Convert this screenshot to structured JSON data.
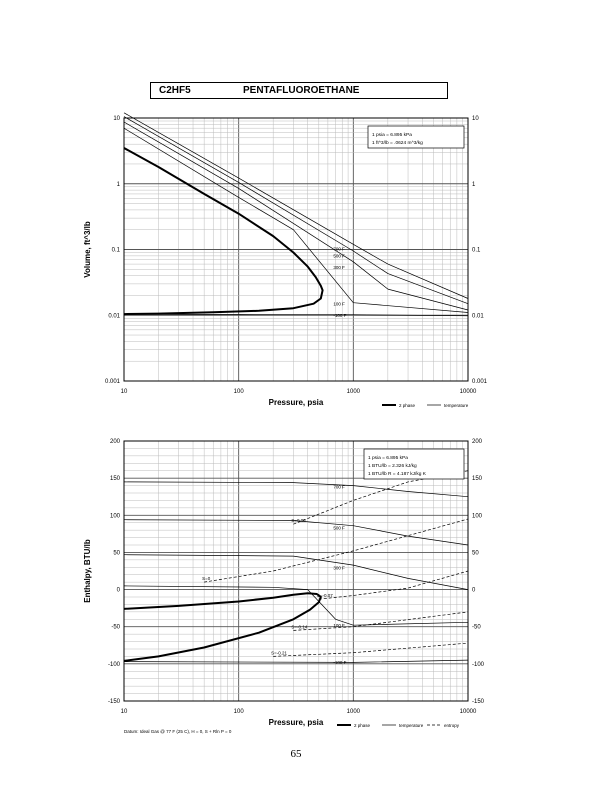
{
  "page": {
    "formula": "C2HF5",
    "name": "PENTAFLUOROETHANE",
    "page_number": "65",
    "footnote": "Datum: Ideal Gas @ 77 F (25 C), H = 0, S + Rln P = 0"
  },
  "chart_data": [
    {
      "type": "line",
      "xscale": "log",
      "yscale": "log",
      "xlim": [
        10,
        10000
      ],
      "ylim": [
        0.001,
        10
      ],
      "xlabel": "Pressure, psia",
      "ylabel": "Volume, ft^3/lb",
      "x_ticks": [
        "10",
        "100",
        "1000",
        "10000"
      ],
      "y_ticks": [
        "0.001",
        "0.01",
        "0.1",
        "1",
        "10"
      ],
      "conversions": [
        "1 psia = 6.895 kPa",
        "1 ft^3/lb = .0624 m^3/kg"
      ],
      "legend": [
        "2 phase",
        "temperature"
      ],
      "series": [
        {
          "role": "2 phase",
          "x": [
            10,
            20,
            50,
            100,
            200,
            300,
            400,
            470,
            520,
            540,
            520,
            450,
            300,
            150,
            60,
            20,
            10
          ],
          "y": [
            3.5,
            1.8,
            0.7,
            0.35,
            0.16,
            0.09,
            0.055,
            0.038,
            0.028,
            0.024,
            0.018,
            0.015,
            0.0128,
            0.0117,
            0.0111,
            0.0106,
            0.0104
          ]
        },
        {
          "name": "-100 F",
          "x": [
            10,
            100,
            1000,
            10000
          ],
          "y": [
            0.0103,
            0.0103,
            0.0102,
            0.0098
          ]
        },
        {
          "name": "100 F",
          "x": [
            10,
            100,
            300,
            1000,
            10000
          ],
          "y": [
            7.0,
            0.62,
            0.2,
            0.0155,
            0.011
          ]
        },
        {
          "name": "300 F",
          "x": [
            10,
            100,
            1000,
            2000,
            10000
          ],
          "y": [
            8.7,
            0.85,
            0.065,
            0.025,
            0.012
          ]
        },
        {
          "name": "500 F",
          "x": [
            10,
            100,
            1000,
            2000,
            10000
          ],
          "y": [
            10.5,
            1.05,
            0.095,
            0.043,
            0.015
          ]
        },
        {
          "name": "700 F",
          "x": [
            10,
            100,
            1000,
            2000,
            10000
          ],
          "y": [
            12.0,
            1.22,
            0.12,
            0.06,
            0.018
          ]
        }
      ]
    },
    {
      "type": "line",
      "xscale": "log",
      "xlim": [
        10,
        10000
      ],
      "ylim": [
        -150,
        200
      ],
      "xlabel": "Pressure, psia",
      "ylabel": "Enthalpy, BTU/lb",
      "x_ticks": [
        "10",
        "100",
        "1000",
        "10000"
      ],
      "y_ticks": [
        "-150",
        "-100",
        "-50",
        "0",
        "50",
        "100",
        "150",
        "200"
      ],
      "conversions": [
        "1 psia = 6.895 kPa",
        "1 BTU/lb = 2.326 kJ/kg",
        "1 BTU/lb R = 4.187 kJ/kg K"
      ],
      "legend": [
        "2 phase",
        "temperature",
        "entropy"
      ],
      "series": [
        {
          "role": "2 phase",
          "x": [
            10,
            30,
            100,
            200,
            300,
            400,
            480,
            520,
            500,
            420,
            300,
            150,
            50,
            20,
            10
          ],
          "y": [
            -26,
            -22,
            -16,
            -11,
            -7,
            -5,
            -6,
            -10,
            -17,
            -27,
            -40,
            -58,
            -78,
            -90,
            -96
          ]
        },
        {
          "name": "-100 F",
          "x": [
            10,
            1000,
            10000
          ],
          "y": [
            -97,
            -98,
            -95
          ]
        },
        {
          "name": "100 F",
          "x": [
            10,
            200,
            400,
            700,
            1000,
            10000
          ],
          "y": [
            5,
            3,
            0,
            -40,
            -48,
            -44
          ]
        },
        {
          "name": "300 F",
          "x": [
            10,
            300,
            1000,
            3000,
            10000
          ],
          "y": [
            47,
            45,
            33,
            15,
            0
          ]
        },
        {
          "name": "500 F",
          "x": [
            10,
            300,
            1000,
            3000,
            10000
          ],
          "y": [
            94,
            93,
            86,
            72,
            60
          ]
        },
        {
          "name": "700 F",
          "x": [
            10,
            300,
            1000,
            3000,
            10000
          ],
          "y": [
            145,
            144,
            140,
            132,
            125
          ]
        },
        {
          "name": "S=0.08",
          "style": "dashed",
          "x": [
            300,
            1000,
            3000,
            10000
          ],
          "y": [
            88,
            120,
            145,
            160
          ]
        },
        {
          "name": "S=0",
          "style": "dashed",
          "x": [
            50,
            200,
            1000,
            10000
          ],
          "y": [
            10,
            25,
            52,
            95
          ]
        },
        {
          "name": "S=-0.07",
          "style": "dashed",
          "x": [
            500,
            1000,
            3000,
            10000
          ],
          "y": [
            -13,
            -8,
            2,
            25
          ]
        },
        {
          "name": "S=-0.14",
          "style": "dashed",
          "x": [
            300,
            1000,
            10000
          ],
          "y": [
            -55,
            -50,
            -30
          ]
        },
        {
          "name": "S=-0.21",
          "style": "dashed",
          "x": [
            200,
            1000,
            10000
          ],
          "y": [
            -90,
            -85,
            -72
          ]
        }
      ]
    }
  ]
}
